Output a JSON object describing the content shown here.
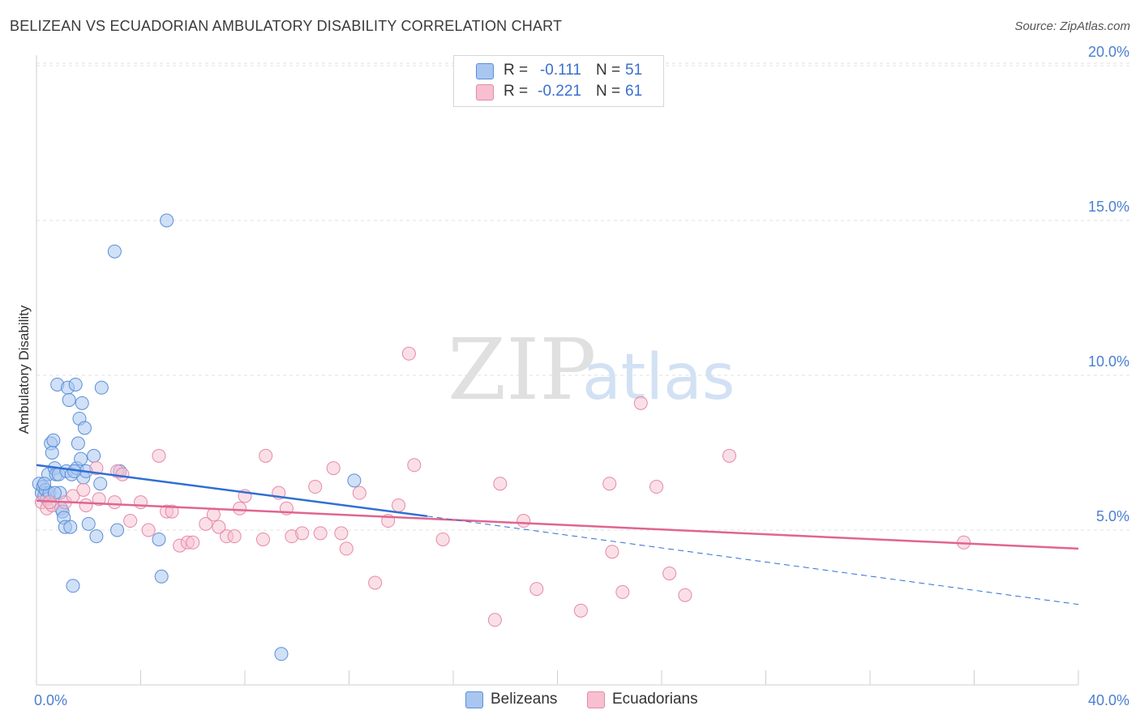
{
  "title": "BELIZEAN VS ECUADORIAN AMBULATORY DISABILITY CORRELATION CHART",
  "source": "Source: ZipAtlas.com",
  "watermark": {
    "zip": "ZIP",
    "atlas": "atlas"
  },
  "legend": {
    "rows": [
      {
        "r_label": "R =",
        "r_value": "-0.111",
        "n_label": "N =",
        "n_value": "51"
      },
      {
        "r_label": "R =",
        "r_value": "-0.221",
        "n_label": "N =",
        "n_value": "61"
      }
    ]
  },
  "bottom_legend": {
    "belizeans": "Belizeans",
    "ecuadorians": "Ecuadorians"
  },
  "colors": {
    "blue_fill": "#a9c6f0",
    "blue_stroke": "#5b8fd6",
    "blue_line": "#2f6fd3",
    "pink_fill": "#f7bfd0",
    "pink_stroke": "#e48aa8",
    "pink_line": "#e0658f",
    "grid": "#e2e2e2",
    "axis_text": "#4a7fd0"
  },
  "chart_data": {
    "type": "scatter",
    "title": "BELIZEAN VS ECUADORIAN AMBULATORY DISABILITY CORRELATION CHART",
    "xlabel": "",
    "ylabel": "Ambulatory Disability",
    "xlim": [
      0,
      40
    ],
    "ylim": [
      0,
      20.5
    ],
    "x_tick_labels": [
      "0.0%",
      "40.0%"
    ],
    "y_ticks": [
      5,
      10,
      15,
      20
    ],
    "y_tick_labels": [
      "5.0%",
      "10.0%",
      "15.0%",
      "20.0%"
    ],
    "grid": true,
    "legend_position": "top-center",
    "series": [
      {
        "name": "Belizeans",
        "r": -0.111,
        "n": 51,
        "trend": {
          "x": [
            0,
            15
          ],
          "y": [
            7.1,
            5.45
          ]
        },
        "trend_ext": {
          "x": [
            15,
            40
          ],
          "y": [
            5.45,
            2.6
          ]
        },
        "points": [
          [
            0.1,
            6.5
          ],
          [
            0.2,
            6.2
          ],
          [
            0.25,
            6.4
          ],
          [
            0.3,
            6.1
          ],
          [
            0.35,
            6.3
          ],
          [
            0.4,
            6.0
          ],
          [
            0.45,
            6.8
          ],
          [
            0.5,
            6.2
          ],
          [
            0.55,
            7.8
          ],
          [
            0.6,
            7.5
          ],
          [
            0.65,
            7.9
          ],
          [
            0.7,
            7.0
          ],
          [
            0.75,
            6.8
          ],
          [
            0.8,
            9.7
          ],
          [
            0.85,
            6.8
          ],
          [
            0.9,
            6.2
          ],
          [
            0.95,
            5.7
          ],
          [
            1.0,
            5.6
          ],
          [
            1.05,
            5.4
          ],
          [
            1.1,
            5.1
          ],
          [
            1.15,
            6.9
          ],
          [
            1.2,
            9.6
          ],
          [
            1.25,
            9.2
          ],
          [
            1.3,
            5.1
          ],
          [
            1.35,
            6.8
          ],
          [
            1.4,
            3.2
          ],
          [
            1.5,
            9.7
          ],
          [
            1.55,
            7.0
          ],
          [
            1.6,
            7.8
          ],
          [
            1.65,
            8.6
          ],
          [
            1.7,
            7.3
          ],
          [
            1.75,
            9.1
          ],
          [
            1.8,
            6.7
          ],
          [
            1.85,
            8.3
          ],
          [
            1.9,
            6.9
          ],
          [
            2.0,
            5.2
          ],
          [
            2.2,
            7.4
          ],
          [
            2.3,
            4.8
          ],
          [
            2.45,
            6.5
          ],
          [
            2.5,
            9.6
          ],
          [
            3.0,
            14.0
          ],
          [
            3.1,
            5.0
          ],
          [
            3.2,
            6.9
          ],
          [
            4.7,
            4.7
          ],
          [
            4.8,
            3.5
          ],
          [
            5.0,
            15.0
          ],
          [
            9.4,
            1.0
          ],
          [
            12.2,
            6.6
          ],
          [
            0.7,
            6.2
          ],
          [
            1.45,
            6.9
          ],
          [
            0.3,
            6.5
          ]
        ]
      },
      {
        "name": "Ecuadorians",
        "r": -0.221,
        "n": 61,
        "trend": {
          "x": [
            0,
            40
          ],
          "y": [
            5.95,
            4.4
          ]
        },
        "points": [
          [
            0.2,
            5.9
          ],
          [
            0.4,
            5.7
          ],
          [
            0.6,
            5.8
          ],
          [
            1.1,
            5.9
          ],
          [
            1.4,
            6.1
          ],
          [
            1.8,
            6.3
          ],
          [
            1.9,
            5.8
          ],
          [
            2.4,
            6.0
          ],
          [
            2.3,
            7.0
          ],
          [
            3.0,
            5.9
          ],
          [
            3.1,
            6.9
          ],
          [
            3.3,
            6.8
          ],
          [
            3.6,
            5.3
          ],
          [
            4.0,
            5.9
          ],
          [
            4.3,
            5.0
          ],
          [
            4.7,
            7.4
          ],
          [
            5.0,
            5.6
          ],
          [
            5.2,
            5.6
          ],
          [
            5.5,
            4.5
          ],
          [
            5.8,
            4.6
          ],
          [
            6.0,
            4.6
          ],
          [
            6.5,
            5.2
          ],
          [
            6.8,
            5.5
          ],
          [
            7.0,
            5.1
          ],
          [
            7.3,
            4.8
          ],
          [
            7.6,
            4.8
          ],
          [
            7.8,
            5.7
          ],
          [
            8.0,
            6.1
          ],
          [
            8.7,
            4.7
          ],
          [
            8.8,
            7.4
          ],
          [
            9.3,
            6.2
          ],
          [
            9.6,
            5.7
          ],
          [
            9.8,
            4.8
          ],
          [
            10.2,
            4.9
          ],
          [
            10.7,
            6.4
          ],
          [
            10.9,
            4.9
          ],
          [
            11.4,
            7.0
          ],
          [
            11.7,
            4.9
          ],
          [
            11.9,
            4.4
          ],
          [
            12.4,
            6.2
          ],
          [
            13.0,
            3.3
          ],
          [
            13.5,
            5.3
          ],
          [
            13.9,
            5.8
          ],
          [
            14.3,
            10.7
          ],
          [
            14.5,
            7.1
          ],
          [
            15.6,
            4.7
          ],
          [
            17.6,
            2.1
          ],
          [
            17.8,
            6.5
          ],
          [
            18.7,
            5.3
          ],
          [
            19.2,
            3.1
          ],
          [
            20.9,
            2.4
          ],
          [
            22.0,
            6.5
          ],
          [
            22.1,
            4.3
          ],
          [
            22.5,
            3.0
          ],
          [
            23.2,
            9.1
          ],
          [
            23.8,
            6.4
          ],
          [
            24.3,
            3.6
          ],
          [
            24.9,
            2.9
          ],
          [
            26.6,
            7.4
          ],
          [
            35.6,
            4.6
          ],
          [
            0.5,
            5.9
          ]
        ]
      }
    ]
  }
}
